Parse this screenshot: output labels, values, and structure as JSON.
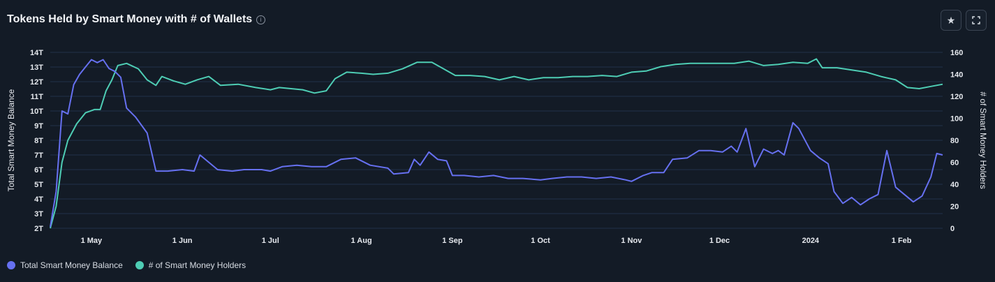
{
  "header": {
    "title": "Tokens Held by Smart Money with # of Wallets",
    "info_icon": "info-icon",
    "star_icon": "star-icon",
    "expand_icon": "fullscreen-icon"
  },
  "colors": {
    "balance": "#6670f0",
    "holders": "#4ecdb4",
    "background": "#131b26",
    "grid": "#22324a"
  },
  "chart_data": {
    "type": "line",
    "title": "Tokens Held by Smart Money with # of Wallets",
    "xlabel": "",
    "ylabel": "Total Smart Money Balance",
    "y2label": "# of Smart Money Holders",
    "x_ticks": [
      "1 May",
      "1 Jun",
      "1 Jul",
      "1 Aug",
      "1 Sep",
      "1 Oct",
      "1 Nov",
      "1 Dec",
      "2024",
      "1 Feb"
    ],
    "y_ticks": [
      "2T",
      "3T",
      "4T",
      "5T",
      "6T",
      "7T",
      "8T",
      "9T",
      "10T",
      "11T",
      "12T",
      "13T",
      "14T"
    ],
    "y2_ticks": [
      "0",
      "20",
      "40",
      "60",
      "80",
      "100",
      "120",
      "140",
      "160"
    ],
    "ylim": [
      2,
      14
    ],
    "y2lim": [
      0,
      160
    ],
    "x_start": "2023-04-17",
    "x_end": "2024-02-15",
    "legend_position": "bottom-left",
    "grid": true,
    "series": [
      {
        "name": "Total Smart Money Balance",
        "axis": "left",
        "unit": "T",
        "points": [
          [
            "2023-04-17",
            2.1
          ],
          [
            "2023-04-19",
            4.5
          ],
          [
            "2023-04-21",
            10.0
          ],
          [
            "2023-04-23",
            9.8
          ],
          [
            "2023-04-25",
            11.8
          ],
          [
            "2023-04-27",
            12.5
          ],
          [
            "2023-04-29",
            13.0
          ],
          [
            "2023-05-01",
            13.5
          ],
          [
            "2023-05-03",
            13.3
          ],
          [
            "2023-05-05",
            13.5
          ],
          [
            "2023-05-07",
            12.9
          ],
          [
            "2023-05-09",
            12.7
          ],
          [
            "2023-05-11",
            12.3
          ],
          [
            "2023-05-13",
            10.2
          ],
          [
            "2023-05-16",
            9.6
          ],
          [
            "2023-05-20",
            8.5
          ],
          [
            "2023-05-23",
            5.9
          ],
          [
            "2023-05-27",
            5.9
          ],
          [
            "2023-06-01",
            6.0
          ],
          [
            "2023-06-05",
            5.9
          ],
          [
            "2023-06-07",
            7.0
          ],
          [
            "2023-06-10",
            6.5
          ],
          [
            "2023-06-13",
            6.0
          ],
          [
            "2023-06-18",
            5.9
          ],
          [
            "2023-06-22",
            6.0
          ],
          [
            "2023-06-28",
            6.0
          ],
          [
            "2023-07-01",
            5.9
          ],
          [
            "2023-07-05",
            6.2
          ],
          [
            "2023-07-10",
            6.3
          ],
          [
            "2023-07-15",
            6.2
          ],
          [
            "2023-07-20",
            6.2
          ],
          [
            "2023-07-25",
            6.7
          ],
          [
            "2023-07-30",
            6.8
          ],
          [
            "2023-08-04",
            6.3
          ],
          [
            "2023-08-10",
            6.1
          ],
          [
            "2023-08-12",
            5.7
          ],
          [
            "2023-08-17",
            5.8
          ],
          [
            "2023-08-19",
            6.7
          ],
          [
            "2023-08-21",
            6.3
          ],
          [
            "2023-08-24",
            7.2
          ],
          [
            "2023-08-27",
            6.7
          ],
          [
            "2023-08-30",
            6.6
          ],
          [
            "2023-09-01",
            5.6
          ],
          [
            "2023-09-05",
            5.6
          ],
          [
            "2023-09-10",
            5.5
          ],
          [
            "2023-09-15",
            5.6
          ],
          [
            "2023-09-20",
            5.4
          ],
          [
            "2023-09-25",
            5.4
          ],
          [
            "2023-10-01",
            5.3
          ],
          [
            "2023-10-05",
            5.4
          ],
          [
            "2023-10-10",
            5.5
          ],
          [
            "2023-10-15",
            5.5
          ],
          [
            "2023-10-20",
            5.4
          ],
          [
            "2023-10-25",
            5.5
          ],
          [
            "2023-10-30",
            5.3
          ],
          [
            "2023-11-01",
            5.2
          ],
          [
            "2023-11-05",
            5.6
          ],
          [
            "2023-11-08",
            5.8
          ],
          [
            "2023-11-12",
            5.8
          ],
          [
            "2023-11-15",
            6.7
          ],
          [
            "2023-11-20",
            6.8
          ],
          [
            "2023-11-24",
            7.3
          ],
          [
            "2023-11-28",
            7.3
          ],
          [
            "2023-12-02",
            7.2
          ],
          [
            "2023-12-05",
            7.6
          ],
          [
            "2023-12-07",
            7.2
          ],
          [
            "2023-12-10",
            8.8
          ],
          [
            "2023-12-13",
            6.2
          ],
          [
            "2023-12-16",
            7.4
          ],
          [
            "2023-12-19",
            7.1
          ],
          [
            "2023-12-21",
            7.3
          ],
          [
            "2023-12-23",
            7.0
          ],
          [
            "2023-12-26",
            9.2
          ],
          [
            "2023-12-28",
            8.8
          ],
          [
            "2024-01-01",
            7.3
          ],
          [
            "2024-01-04",
            6.8
          ],
          [
            "2024-01-07",
            6.4
          ],
          [
            "2024-01-09",
            4.5
          ],
          [
            "2024-01-12",
            3.7
          ],
          [
            "2024-01-15",
            4.1
          ],
          [
            "2024-01-18",
            3.6
          ],
          [
            "2024-01-21",
            4.0
          ],
          [
            "2024-01-24",
            4.3
          ],
          [
            "2024-01-27",
            7.3
          ],
          [
            "2024-01-30",
            4.8
          ],
          [
            "2024-02-02",
            4.3
          ],
          [
            "2024-02-05",
            3.8
          ],
          [
            "2024-02-08",
            4.2
          ],
          [
            "2024-02-11",
            5.5
          ],
          [
            "2024-02-13",
            7.1
          ],
          [
            "2024-02-15",
            7.0
          ]
        ]
      },
      {
        "name": "# of Smart Money Holders",
        "axis": "right",
        "unit": "",
        "points": [
          [
            "2023-04-17",
            0
          ],
          [
            "2023-04-19",
            20
          ],
          [
            "2023-04-21",
            60
          ],
          [
            "2023-04-23",
            80
          ],
          [
            "2023-04-26",
            95
          ],
          [
            "2023-04-29",
            105
          ],
          [
            "2023-05-02",
            108
          ],
          [
            "2023-05-04",
            108
          ],
          [
            "2023-05-06",
            125
          ],
          [
            "2023-05-08",
            135
          ],
          [
            "2023-05-10",
            148
          ],
          [
            "2023-05-13",
            150
          ],
          [
            "2023-05-17",
            145
          ],
          [
            "2023-05-20",
            135
          ],
          [
            "2023-05-23",
            130
          ],
          [
            "2023-05-25",
            138
          ],
          [
            "2023-05-29",
            134
          ],
          [
            "2023-06-02",
            131
          ],
          [
            "2023-06-06",
            135
          ],
          [
            "2023-06-10",
            138
          ],
          [
            "2023-06-14",
            130
          ],
          [
            "2023-06-20",
            131
          ],
          [
            "2023-06-26",
            128
          ],
          [
            "2023-07-01",
            126
          ],
          [
            "2023-07-04",
            128
          ],
          [
            "2023-07-08",
            127
          ],
          [
            "2023-07-12",
            126
          ],
          [
            "2023-07-16",
            123
          ],
          [
            "2023-07-20",
            125
          ],
          [
            "2023-07-23",
            136
          ],
          [
            "2023-07-27",
            142
          ],
          [
            "2023-08-01",
            141
          ],
          [
            "2023-08-05",
            140
          ],
          [
            "2023-08-10",
            141
          ],
          [
            "2023-08-15",
            145
          ],
          [
            "2023-08-20",
            151
          ],
          [
            "2023-08-25",
            151
          ],
          [
            "2023-08-29",
            145
          ],
          [
            "2023-09-02",
            139
          ],
          [
            "2023-09-07",
            139
          ],
          [
            "2023-09-12",
            138
          ],
          [
            "2023-09-17",
            135
          ],
          [
            "2023-09-22",
            138
          ],
          [
            "2023-09-27",
            135
          ],
          [
            "2023-10-02",
            137
          ],
          [
            "2023-10-07",
            137
          ],
          [
            "2023-10-12",
            138
          ],
          [
            "2023-10-17",
            138
          ],
          [
            "2023-10-22",
            139
          ],
          [
            "2023-10-27",
            138
          ],
          [
            "2023-11-01",
            142
          ],
          [
            "2023-11-06",
            143
          ],
          [
            "2023-11-11",
            147
          ],
          [
            "2023-11-16",
            149
          ],
          [
            "2023-11-21",
            150
          ],
          [
            "2023-11-26",
            150
          ],
          [
            "2023-12-01",
            150
          ],
          [
            "2023-12-06",
            150
          ],
          [
            "2023-12-11",
            152
          ],
          [
            "2023-12-16",
            148
          ],
          [
            "2023-12-21",
            149
          ],
          [
            "2023-12-26",
            151
          ],
          [
            "2023-12-31",
            150
          ],
          [
            "2024-01-03",
            154
          ],
          [
            "2024-01-05",
            146
          ],
          [
            "2024-01-10",
            146
          ],
          [
            "2024-01-15",
            144
          ],
          [
            "2024-01-20",
            142
          ],
          [
            "2024-01-25",
            138
          ],
          [
            "2024-01-30",
            135
          ],
          [
            "2024-02-03",
            128
          ],
          [
            "2024-02-07",
            127
          ],
          [
            "2024-02-11",
            129
          ],
          [
            "2024-02-15",
            131
          ]
        ]
      }
    ]
  },
  "legend": [
    {
      "label": "Total Smart Money Balance",
      "color": "#6670f0"
    },
    {
      "label": "# of Smart Money Holders",
      "color": "#4ecdb4"
    }
  ]
}
